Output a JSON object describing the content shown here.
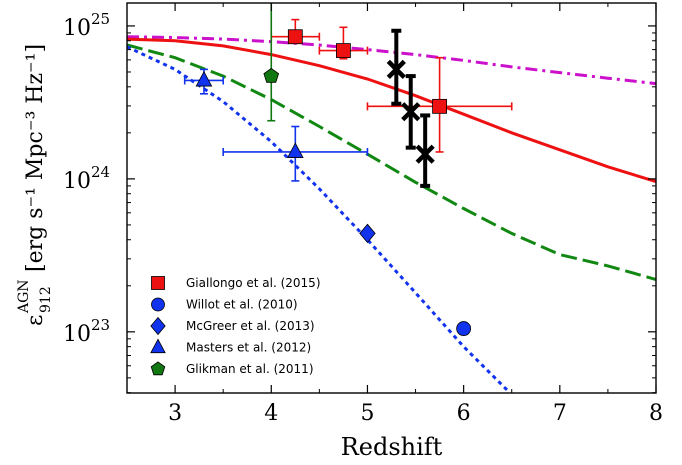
{
  "chart_data": {
    "type": "scatter",
    "xlabel": "Redshift",
    "ylabel_symbol": "ε",
    "ylabel_sub": "912",
    "ylabel_sup": "AGN",
    "ylabel_units": "[erg s⁻¹ Mpc⁻³ Hz⁻¹]",
    "xlim": [
      2.5,
      8.0
    ],
    "ylim_log10": [
      22.6,
      25.15
    ],
    "y_scale": "log",
    "x_ticks": [
      3,
      4,
      5,
      6,
      7,
      8
    ],
    "x_tick_labels": [
      "3",
      "4",
      "5",
      "6",
      "7",
      "8"
    ],
    "y_ticks_log10": [
      23,
      24,
      25
    ],
    "y_tick_labels": [
      {
        "base": "10",
        "exp": "23"
      },
      {
        "base": "10",
        "exp": "24"
      },
      {
        "base": "10",
        "exp": "25"
      }
    ],
    "legend_placement": "lower-left",
    "legend": [
      {
        "label": "Giallongo et al. (2015)",
        "marker": "square",
        "color": "#ee1111"
      },
      {
        "label": "Willot et al. (2010)",
        "marker": "circle",
        "color": "#1133ee"
      },
      {
        "label": "McGreer et al. (2013)",
        "marker": "diamond",
        "color": "#1133ee"
      },
      {
        "label": "Masters et al. (2012)",
        "marker": "triangle",
        "color": "#1133ee"
      },
      {
        "label": "Glikman et al. (2011)",
        "marker": "pentagon",
        "color": "#117711"
      }
    ],
    "curves": [
      {
        "style": "dashdot",
        "color": "#cc11cc",
        "x": [
          2.5,
          3.0,
          3.5,
          4.0,
          4.5,
          5.0,
          5.5,
          6.0,
          6.5,
          7.0,
          7.5,
          8.0
        ],
        "y": [
          8.5e+24,
          8.4e+24,
          8.2e+24,
          7.9e+24,
          7.5e+24,
          7e+24,
          6.5e+24,
          5.95e+24,
          5.4e+24,
          4.95e+24,
          4.55e+24,
          4.2e+24
        ]
      },
      {
        "style": "solid",
        "color": "#ee1111",
        "x": [
          2.5,
          3.0,
          3.5,
          4.0,
          4.5,
          5.0,
          5.5,
          6.0,
          6.5,
          7.0,
          7.5,
          8.0
        ],
        "y": [
          8.2e+24,
          8e+24,
          7.4e+24,
          6.5e+24,
          5.5e+24,
          4.5e+24,
          3.5e+24,
          2.65e+24,
          2e+24,
          1.55e+24,
          1.2e+24,
          9.6e+23
        ]
      },
      {
        "style": "dashed",
        "color": "#118811",
        "x": [
          2.5,
          3.0,
          3.5,
          4.0,
          4.5,
          5.0,
          5.5,
          6.0,
          6.5,
          7.0,
          7.5,
          8.0
        ],
        "y": [
          7.5e+24,
          6.2e+24,
          4.7e+24,
          3.3e+24,
          2.2e+24,
          1.45e+24,
          9.5e+23,
          6.4e+23,
          4.4e+23,
          3.2e+23,
          2.7e+23,
          2.2e+23
        ]
      },
      {
        "style": "dotted",
        "color": "#1133ee",
        "x": [
          2.5,
          3.0,
          3.5,
          4.0,
          4.5,
          5.0,
          5.5,
          6.0,
          6.48
        ],
        "y": [
          7.3e+24,
          5.2e+24,
          3.2e+24,
          1.75e+24,
          8.6e+23,
          4e+23,
          1.8e+23,
          8e+22,
          4e+22
        ]
      }
    ],
    "points": [
      {
        "series": "Giallongo et al. (2015)",
        "marker": "square",
        "color": "#ee1111",
        "x": 4.25,
        "y": 8.5e+24,
        "xerr": [
          0.25,
          0.25
        ],
        "yerr": [
          8.4e+24,
          1.1e+25
        ]
      },
      {
        "series": "Giallongo et al. (2015)",
        "marker": "square",
        "color": "#ee1111",
        "x": 4.75,
        "y": 6.9e+24,
        "xerr": [
          0.25,
          0.25
        ],
        "yerr": [
          6.1e+24,
          9.8e+24
        ]
      },
      {
        "series": "Giallongo et al. (2015)",
        "marker": "square",
        "color": "#ee1111",
        "x": 5.75,
        "y": 2.98e+24,
        "xerr": [
          0.75,
          0.75
        ],
        "yerr": [
          1.5e+24,
          6.2e+24
        ]
      },
      {
        "series": "Willot et al. (2010)",
        "marker": "circle",
        "color": "#1133ee",
        "x": 6.0,
        "y": 1.05e+23
      },
      {
        "series": "McGreer et al. (2013)",
        "marker": "diamond",
        "color": "#1133ee",
        "x": 5.0,
        "y": 4.4e+23
      },
      {
        "series": "Masters et al. (2012)",
        "marker": "triangle",
        "color": "#1133ee",
        "x": 3.3,
        "y": 4.4e+24,
        "xerr": [
          0.2,
          0.2
        ],
        "yerr": [
          3.6e+24,
          5.2e+24
        ]
      },
      {
        "series": "Masters et al. (2012)",
        "marker": "triangle",
        "color": "#1133ee",
        "x": 4.25,
        "y": 1.5e+24,
        "xerr": [
          0.75,
          0.75
        ],
        "yerr": [
          9.7e+23,
          2.2e+24
        ]
      },
      {
        "series": "Glikman et al. (2011)",
        "marker": "pentagon",
        "color": "#117711",
        "x": 4.0,
        "y": 4.7e+24,
        "xerr": [
          0,
          0
        ],
        "yerr": [
          2.4e+24,
          1.45e+25
        ]
      }
    ],
    "cross_points": [
      {
        "marker": "x",
        "color": "#000000",
        "x": 5.3,
        "y": 5.2e+24,
        "yerr": [
          3.1e+24,
          9.3e+24
        ]
      },
      {
        "marker": "x",
        "color": "#000000",
        "x": 5.45,
        "y": 2.75e+24,
        "yerr": [
          1.6e+24,
          4.7e+24
        ]
      },
      {
        "marker": "x",
        "color": "#000000",
        "x": 5.6,
        "y": 1.45e+24,
        "yerr": [
          9e+23,
          2.6e+24
        ]
      }
    ]
  }
}
